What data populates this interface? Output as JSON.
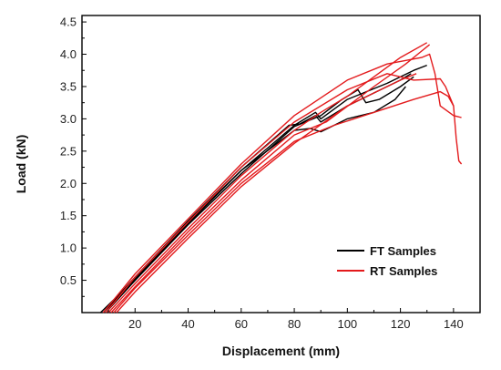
{
  "chart_data": {
    "type": "line",
    "xlabel": "Displacement (mm)",
    "ylabel": "Load (kN)",
    "xlim": [
      0,
      150
    ],
    "ylim": [
      0,
      4.6
    ],
    "x_ticks": [
      20,
      40,
      60,
      80,
      100,
      120,
      140
    ],
    "y_ticks": [
      0.5,
      1.0,
      1.5,
      2.0,
      2.5,
      3.0,
      3.5,
      4.0,
      4.5
    ],
    "x_tick_labels": [
      "20",
      "40",
      "60",
      "80",
      "100",
      "120",
      "140"
    ],
    "y_tick_labels": [
      "0.5",
      "1.0",
      "1.5",
      "2.0",
      "2.5",
      "3.0",
      "3.5",
      "4.0",
      "4.5"
    ],
    "grid": false,
    "legend_position": "bottom-right",
    "legend": [
      {
        "label": "FT Samples",
        "color": "#000000"
      },
      {
        "label": "RT Samples",
        "color": "#e31a1c"
      }
    ],
    "series": [
      {
        "group": "FT Samples",
        "color": "#000000",
        "points": [
          [
            8,
            0
          ],
          [
            20,
            0.55
          ],
          [
            40,
            1.42
          ],
          [
            60,
            2.25
          ],
          [
            78,
            2.9
          ],
          [
            82,
            2.92
          ],
          [
            88,
            3.05
          ],
          [
            90,
            2.95
          ],
          [
            100,
            3.2
          ],
          [
            110,
            3.4
          ],
          [
            120,
            3.6
          ],
          [
            124,
            3.7
          ]
        ]
      },
      {
        "group": "FT Samples",
        "color": "#000000",
        "points": [
          [
            9,
            0
          ],
          [
            20,
            0.5
          ],
          [
            40,
            1.38
          ],
          [
            60,
            2.2
          ],
          [
            80,
            2.9
          ],
          [
            88,
            3.1
          ],
          [
            90,
            3.0
          ],
          [
            100,
            3.3
          ],
          [
            115,
            3.55
          ],
          [
            125,
            3.75
          ],
          [
            130,
            3.83
          ]
        ]
      },
      {
        "group": "FT Samples",
        "color": "#000000",
        "points": [
          [
            7,
            0
          ],
          [
            20,
            0.52
          ],
          [
            40,
            1.4
          ],
          [
            60,
            2.2
          ],
          [
            80,
            2.82
          ],
          [
            86,
            2.85
          ],
          [
            90,
            2.8
          ],
          [
            100,
            3.0
          ],
          [
            105,
            3.05
          ],
          [
            110,
            3.1
          ],
          [
            118,
            3.3
          ],
          [
            122,
            3.5
          ]
        ]
      },
      {
        "group": "FT Samples",
        "color": "#000000",
        "points": [
          [
            8,
            0
          ],
          [
            20,
            0.5
          ],
          [
            40,
            1.36
          ],
          [
            60,
            2.15
          ],
          [
            80,
            2.88
          ],
          [
            90,
            3.05
          ],
          [
            98,
            3.3
          ],
          [
            104,
            3.45
          ],
          [
            107,
            3.25
          ],
          [
            112,
            3.3
          ],
          [
            120,
            3.5
          ],
          [
            125,
            3.65
          ]
        ]
      },
      {
        "group": "RT Samples",
        "color": "#e31a1c",
        "points": [
          [
            8,
            0
          ],
          [
            20,
            0.6
          ],
          [
            40,
            1.45
          ],
          [
            60,
            2.3
          ],
          [
            80,
            3.05
          ],
          [
            100,
            3.6
          ],
          [
            115,
            3.85
          ],
          [
            128,
            3.95
          ],
          [
            131,
            4.0
          ],
          [
            133,
            3.7
          ],
          [
            135,
            3.2
          ],
          [
            140,
            3.05
          ],
          [
            143,
            3.02
          ]
        ]
      },
      {
        "group": "RT Samples",
        "color": "#e31a1c",
        "points": [
          [
            9,
            0
          ],
          [
            20,
            0.55
          ],
          [
            40,
            1.4
          ],
          [
            60,
            2.25
          ],
          [
            80,
            2.95
          ],
          [
            100,
            3.45
          ],
          [
            115,
            3.7
          ],
          [
            125,
            3.6
          ],
          [
            135,
            3.62
          ],
          [
            137,
            3.5
          ],
          [
            140,
            3.2
          ],
          [
            141,
            2.7
          ],
          [
            142,
            2.35
          ],
          [
            143,
            2.3
          ]
        ]
      },
      {
        "group": "RT Samples",
        "color": "#e31a1c",
        "points": [
          [
            10,
            0
          ],
          [
            20,
            0.45
          ],
          [
            40,
            1.3
          ],
          [
            60,
            2.12
          ],
          [
            80,
            2.82
          ],
          [
            90,
            3.1
          ],
          [
            100,
            3.35
          ],
          [
            110,
            3.65
          ],
          [
            120,
            3.95
          ],
          [
            130,
            4.18
          ]
        ]
      },
      {
        "group": "RT Samples",
        "color": "#e31a1c",
        "points": [
          [
            11,
            0
          ],
          [
            20,
            0.4
          ],
          [
            40,
            1.25
          ],
          [
            60,
            2.05
          ],
          [
            80,
            2.75
          ],
          [
            92,
            2.95
          ],
          [
            110,
            3.5
          ],
          [
            122,
            3.85
          ],
          [
            128,
            4.05
          ],
          [
            131,
            4.15
          ]
        ]
      },
      {
        "group": "RT Samples",
        "color": "#e31a1c",
        "points": [
          [
            12,
            0
          ],
          [
            20,
            0.38
          ],
          [
            40,
            1.2
          ],
          [
            60,
            2.0
          ],
          [
            80,
            2.65
          ],
          [
            95,
            2.9
          ],
          [
            110,
            3.1
          ],
          [
            125,
            3.3
          ],
          [
            135,
            3.42
          ],
          [
            138,
            3.35
          ],
          [
            140,
            3.2
          ]
        ]
      },
      {
        "group": "RT Samples",
        "color": "#e31a1c",
        "points": [
          [
            13,
            0
          ],
          [
            20,
            0.32
          ],
          [
            40,
            1.15
          ],
          [
            60,
            1.95
          ],
          [
            80,
            2.62
          ],
          [
            100,
            3.2
          ],
          [
            110,
            3.4
          ],
          [
            120,
            3.6
          ],
          [
            126,
            3.7
          ]
        ]
      }
    ]
  }
}
